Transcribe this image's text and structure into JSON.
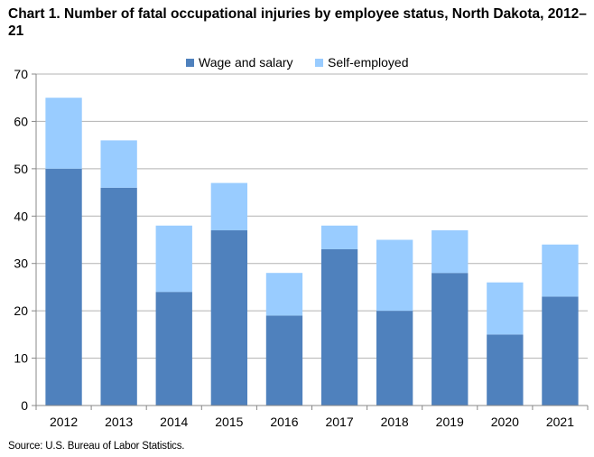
{
  "title": "Chart 1. Number of fatal occupational injuries by employee status, North Dakota, 2012–21",
  "source": "Source: U.S. Bureau of Labor Statistics.",
  "colors": {
    "wage": "#4f81bd",
    "self": "#99ccff",
    "grid": "#b3b3b3",
    "axis": "#888888"
  },
  "legend": {
    "wage_label": "Wage and salary",
    "self_label": "Self-employed",
    "placement": "top-center"
  },
  "chart_data": {
    "type": "bar",
    "stacked": true,
    "categories": [
      "2012",
      "2013",
      "2014",
      "2015",
      "2016",
      "2017",
      "2018",
      "2019",
      "2020",
      "2021"
    ],
    "series": [
      {
        "name": "Wage and salary",
        "values": [
          50,
          46,
          24,
          37,
          19,
          33,
          20,
          28,
          15,
          23
        ]
      },
      {
        "name": "Self-employed",
        "values": [
          15,
          10,
          14,
          10,
          9,
          5,
          15,
          9,
          11,
          11
        ]
      }
    ],
    "yticks": [
      "0",
      "10",
      "20",
      "30",
      "40",
      "50",
      "60",
      "70"
    ],
    "ylim": [
      0,
      70
    ],
    "grid": true
  }
}
